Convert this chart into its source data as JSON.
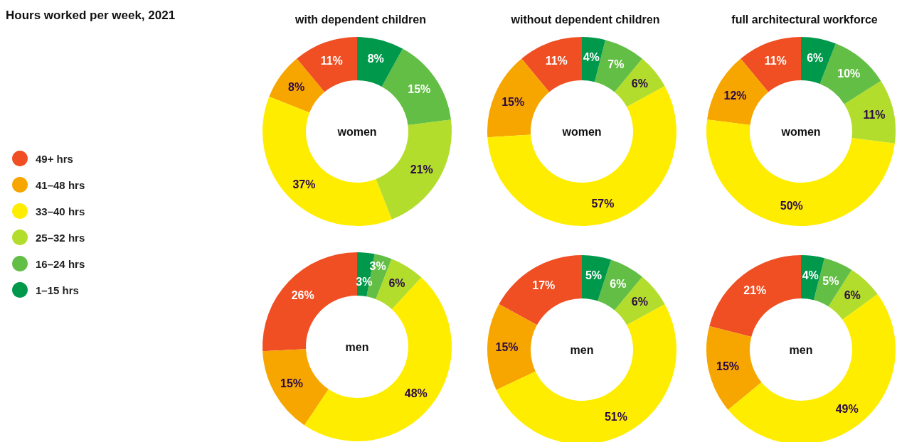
{
  "chart_data": [
    {
      "type": "other",
      "title": "Hours worked per week, 2021"
    },
    {
      "type": "donut",
      "title": "with dependent children",
      "annotations": [
        "women"
      ],
      "legend": "left",
      "categories": [
        "49+ hrs",
        "41–48 hrs",
        "33–40 hrs",
        "25–32 hrs",
        "16–24 hrs",
        "1–15 hrs"
      ],
      "values": [
        11,
        8,
        37,
        21,
        15,
        8
      ],
      "value_labels": [
        "11%",
        "8%",
        "37%",
        "21%",
        "15%",
        "8%"
      ],
      "colors": [
        "#f04e23",
        "#f7a600",
        "#ffed00",
        "#b2dd2c",
        "#63be45",
        "#00994c"
      ]
    },
    {
      "type": "donut",
      "title": "without dependent children",
      "annotations": [
        "women"
      ],
      "values": [
        11,
        15,
        57,
        6,
        7,
        4
      ],
      "value_labels": [
        "11%",
        "15%",
        "57%",
        "6%",
        "7%",
        "4%"
      ],
      "colors": [
        "#f04e23",
        "#f7a600",
        "#ffed00",
        "#b2dd2c",
        "#63be45",
        "#00994c"
      ]
    },
    {
      "type": "donut",
      "title": "full architectural workforce",
      "annotations": [
        "women"
      ],
      "values": [
        11,
        12,
        50,
        11,
        10,
        6
      ],
      "value_labels": [
        "11%",
        "12%",
        "50%",
        "11%",
        "10%",
        "6%"
      ],
      "colors": [
        "#f04e23",
        "#f7a600",
        "#ffed00",
        "#b2dd2c",
        "#63be45",
        "#00994c"
      ]
    },
    {
      "type": "donut",
      "annotations": [
        "men"
      ],
      "values": [
        26,
        15,
        48,
        6,
        3,
        3
      ],
      "value_labels": [
        "26%",
        "15%",
        "48%",
        "6%",
        "3%",
        "3%"
      ],
      "colors": [
        "#f04e23",
        "#f7a600",
        "#ffed00",
        "#b2dd2c",
        "#63be45",
        "#00994c"
      ]
    },
    {
      "type": "donut",
      "annotations": [
        "men"
      ],
      "values": [
        17,
        15,
        51,
        6,
        6,
        5
      ],
      "value_labels": [
        "17%",
        "15%",
        "51%",
        "6%",
        "6%",
        "5%"
      ],
      "colors": [
        "#f04e23",
        "#f7a600",
        "#ffed00",
        "#b2dd2c",
        "#63be45",
        "#00994c"
      ]
    },
    {
      "type": "donut",
      "annotations": [
        "men"
      ],
      "values": [
        21,
        15,
        49,
        6,
        5,
        4
      ],
      "value_labels": [
        "21%",
        "15%",
        "49%",
        "6%",
        "5%",
        "4%"
      ],
      "colors": [
        "#f04e23",
        "#f7a600",
        "#ffed00",
        "#b2dd2c",
        "#63be45",
        "#00994c"
      ]
    }
  ]
}
